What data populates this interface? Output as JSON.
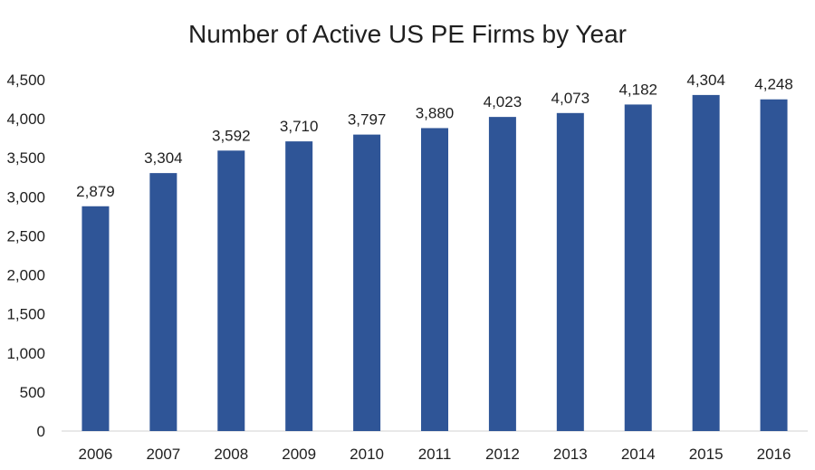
{
  "chart_data": {
    "type": "bar",
    "title": "Number of Active US PE Firms by Year",
    "categories": [
      "2006",
      "2007",
      "2008",
      "2009",
      "2010",
      "2011",
      "2012",
      "2013",
      "2014",
      "2015",
      "2016"
    ],
    "values": [
      2879,
      3304,
      3592,
      3710,
      3797,
      3880,
      4023,
      4073,
      4182,
      4304,
      4248
    ],
    "data_labels": [
      "2,879",
      "3,304",
      "3,592",
      "3,710",
      "3,797",
      "3,880",
      "4,023",
      "4,073",
      "4,182",
      "4,304",
      "4,248"
    ],
    "y_ticks": [
      "0",
      "500",
      "1,000",
      "1,500",
      "2,000",
      "2,500",
      "3,000",
      "3,500",
      "4,000",
      "4,500"
    ],
    "ylim": [
      0,
      4500
    ],
    "xlabel": "",
    "ylabel": "",
    "grid": false,
    "legend": "none",
    "bar_color": "#2f5597"
  }
}
